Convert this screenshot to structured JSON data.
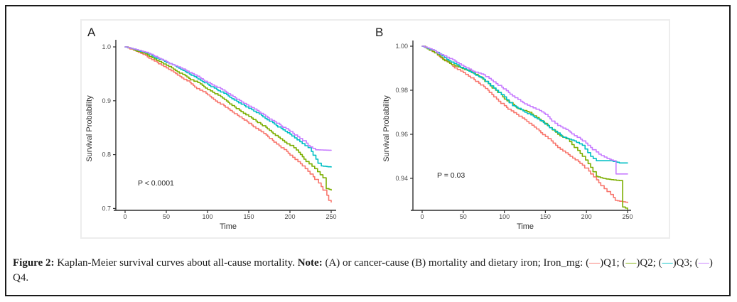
{
  "caption": {
    "figure_label": "Figure 2:",
    "text_after_label": " Kaplan-Meier survival curves about all-cause mortality. ",
    "note_label": "Note:",
    "text_after_note": " (A) or cancer-cause (B) mortality and dietary iron; Iron_mg: ",
    "legend_items": [
      {
        "open": "(",
        "dash": "—",
        "close": ")",
        "label": "Q1",
        "sep": "; ",
        "color": "#F8766D"
      },
      {
        "open": "(",
        "dash": "—",
        "close": ")",
        "label": "Q2",
        "sep": "; ",
        "color": "#7CAE00"
      },
      {
        "open": "(",
        "dash": "—",
        "close": ")",
        "label": "Q3",
        "sep": "; ",
        "color": "#00BFC4"
      },
      {
        "open": "(",
        "dash": "—",
        "close": ")",
        "label": "Q4",
        "sep": ".",
        "color": "#C77CFF"
      }
    ]
  },
  "colors": {
    "q1": "#F8766D",
    "q2": "#7CAE00",
    "q3": "#00BFC4",
    "q4": "#C77CFF",
    "axis": "#2f2f2f",
    "tick_text": "#4d4d4d"
  },
  "chart_data": [
    {
      "type": "line",
      "subtype": "kaplan-meier-step",
      "panel_label": "A",
      "title": "",
      "xlabel": "Time",
      "ylabel": "Survival Probability",
      "annotation": "P < 0.0001",
      "x_ticks": [
        0,
        50,
        100,
        150,
        200,
        250
      ],
      "x_tick_labels": [
        "0",
        "50",
        "100",
        "150",
        "200",
        "250"
      ],
      "y_ticks": [
        0.7,
        0.8,
        0.9,
        1.0
      ],
      "y_tick_labels": [
        "0.7",
        "0.8",
        "0.9",
        "1.0"
      ],
      "xlim": [
        0,
        250
      ],
      "ylim": [
        0.7,
        1.0
      ],
      "grid": false,
      "legend_position": "none",
      "series": [
        {
          "name": "Q1",
          "color": "#F8766D",
          "points": [
            [
              0,
              1.0
            ],
            [
              10,
              0.994
            ],
            [
              25,
              0.984
            ],
            [
              50,
              0.961
            ],
            [
              75,
              0.937
            ],
            [
              100,
              0.911
            ],
            [
              125,
              0.885
            ],
            [
              150,
              0.858
            ],
            [
              175,
              0.83
            ],
            [
              200,
              0.799
            ],
            [
              215,
              0.779
            ],
            [
              230,
              0.754
            ],
            [
              240,
              0.734
            ],
            [
              247,
              0.715
            ],
            [
              250,
              0.712
            ]
          ]
        },
        {
          "name": "Q2",
          "color": "#7CAE00",
          "points": [
            [
              0,
              1.0
            ],
            [
              10,
              0.995
            ],
            [
              25,
              0.987
            ],
            [
              50,
              0.966
            ],
            [
              75,
              0.944
            ],
            [
              100,
              0.921
            ],
            [
              125,
              0.897
            ],
            [
              150,
              0.871
            ],
            [
              175,
              0.845
            ],
            [
              200,
              0.817
            ],
            [
              215,
              0.796
            ],
            [
              230,
              0.774
            ],
            [
              240,
              0.757
            ],
            [
              244,
              0.737
            ],
            [
              250,
              0.734
            ]
          ]
        },
        {
          "name": "Q3",
          "color": "#00BFC4",
          "points": [
            [
              0,
              1.0
            ],
            [
              10,
              0.996
            ],
            [
              25,
              0.989
            ],
            [
              50,
              0.971
            ],
            [
              75,
              0.952
            ],
            [
              100,
              0.931
            ],
            [
              125,
              0.909
            ],
            [
              150,
              0.886
            ],
            [
              175,
              0.862
            ],
            [
              200,
              0.838
            ],
            [
              212,
              0.824
            ],
            [
              222,
              0.813
            ],
            [
              228,
              0.799
            ],
            [
              234,
              0.784
            ],
            [
              238,
              0.779
            ],
            [
              250,
              0.777
            ]
          ]
        },
        {
          "name": "Q4",
          "color": "#C77CFF",
          "points": [
            [
              0,
              1.0
            ],
            [
              10,
              0.996
            ],
            [
              25,
              0.99
            ],
            [
              50,
              0.973
            ],
            [
              75,
              0.955
            ],
            [
              100,
              0.934
            ],
            [
              125,
              0.913
            ],
            [
              150,
              0.89
            ],
            [
              175,
              0.866
            ],
            [
              200,
              0.843
            ],
            [
              212,
              0.83
            ],
            [
              222,
              0.817
            ],
            [
              231,
              0.809
            ],
            [
              250,
              0.808
            ]
          ]
        }
      ]
    },
    {
      "type": "line",
      "subtype": "kaplan-meier-step",
      "panel_label": "B",
      "title": "",
      "xlabel": "Time",
      "ylabel": "Survival Probability",
      "annotation": "P = 0.03",
      "x_ticks": [
        0,
        50,
        100,
        150,
        200,
        250
      ],
      "x_tick_labels": [
        "0",
        "50",
        "100",
        "150",
        "200",
        "250"
      ],
      "y_ticks": [
        0.94,
        0.96,
        0.98,
        1.0
      ],
      "y_tick_labels": [
        "0.94",
        "0.96",
        "0.98",
        "1.00"
      ],
      "xlim": [
        0,
        250
      ],
      "ylim": [
        0.925,
        1.0
      ],
      "grid": false,
      "legend_position": "none",
      "series": [
        {
          "name": "Q1",
          "color": "#F8766D",
          "points": [
            [
              0,
              1.0
            ],
            [
              15,
              0.997
            ],
            [
              30,
              0.993
            ],
            [
              50,
              0.988
            ],
            [
              65,
              0.984
            ],
            [
              80,
              0.98
            ],
            [
              100,
              0.973
            ],
            [
              115,
              0.969
            ],
            [
              130,
              0.965
            ],
            [
              150,
              0.959
            ],
            [
              165,
              0.954
            ],
            [
              180,
              0.95
            ],
            [
              195,
              0.946
            ],
            [
              205,
              0.942
            ],
            [
              215,
              0.938
            ],
            [
              225,
              0.934
            ],
            [
              235,
              0.93
            ],
            [
              250,
              0.929
            ]
          ]
        },
        {
          "name": "Q2",
          "color": "#7CAE00",
          "points": [
            [
              0,
              1.0
            ],
            [
              15,
              0.997
            ],
            [
              25,
              0.994
            ],
            [
              40,
              0.991
            ],
            [
              55,
              0.989
            ],
            [
              70,
              0.986
            ],
            [
              85,
              0.981
            ],
            [
              100,
              0.976
            ],
            [
              115,
              0.972
            ],
            [
              130,
              0.97
            ],
            [
              145,
              0.966
            ],
            [
              155,
              0.963
            ],
            [
              165,
              0.96
            ],
            [
              175,
              0.958
            ],
            [
              185,
              0.954
            ],
            [
              195,
              0.95
            ],
            [
              205,
              0.945
            ],
            [
              212,
              0.941
            ],
            [
              220,
              0.94
            ],
            [
              240,
              0.939
            ],
            [
              244,
              0.927
            ],
            [
              250,
              0.926
            ]
          ]
        },
        {
          "name": "Q3",
          "color": "#00BFC4",
          "points": [
            [
              0,
              1.0
            ],
            [
              15,
              0.998
            ],
            [
              30,
              0.994
            ],
            [
              45,
              0.991
            ],
            [
              60,
              0.988
            ],
            [
              75,
              0.985
            ],
            [
              90,
              0.98
            ],
            [
              100,
              0.977
            ],
            [
              110,
              0.973
            ],
            [
              125,
              0.97
            ],
            [
              140,
              0.967
            ],
            [
              155,
              0.963
            ],
            [
              170,
              0.959
            ],
            [
              185,
              0.957
            ],
            [
              195,
              0.955
            ],
            [
              205,
              0.95
            ],
            [
              212,
              0.948
            ],
            [
              230,
              0.948
            ],
            [
              240,
              0.947
            ],
            [
              250,
              0.947
            ]
          ]
        },
        {
          "name": "Q4",
          "color": "#C77CFF",
          "points": [
            [
              0,
              1.0
            ],
            [
              15,
              0.998
            ],
            [
              30,
              0.995
            ],
            [
              45,
              0.992
            ],
            [
              60,
              0.989
            ],
            [
              75,
              0.987
            ],
            [
              90,
              0.983
            ],
            [
              105,
              0.979
            ],
            [
              120,
              0.975
            ],
            [
              135,
              0.972
            ],
            [
              150,
              0.969
            ],
            [
              165,
              0.964
            ],
            [
              180,
              0.961
            ],
            [
              195,
              0.957
            ],
            [
              205,
              0.954
            ],
            [
              215,
              0.951
            ],
            [
              225,
              0.949
            ],
            [
              233,
              0.948
            ],
            [
              236,
              0.942
            ],
            [
              250,
              0.942
            ]
          ]
        }
      ]
    }
  ]
}
